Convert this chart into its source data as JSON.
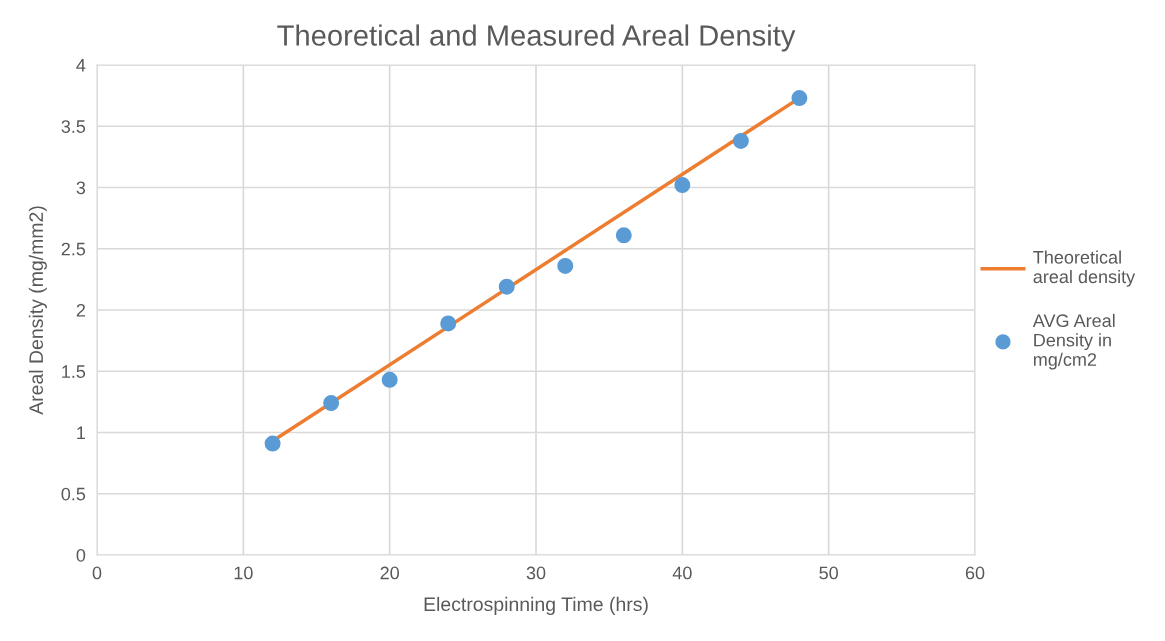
{
  "chart_data": {
    "type": "scatter",
    "title": "Theoretical and Measured Areal Density",
    "xlabel": "Electrospinning Time (hrs)",
    "ylabel": "Areal Density (mg/mm2)",
    "series": [
      {
        "name": "Theoretical areal density",
        "type": "line",
        "color": "#ed7d31",
        "marker": "none",
        "line_style": "solid",
        "x": [
          12,
          48
        ],
        "values": [
          0.93,
          3.73
        ]
      },
      {
        "name": "AVG Areal Density in mg/cm2",
        "color": "#5b9bd5",
        "marker": "circle",
        "x": [
          12,
          16,
          20,
          24,
          28,
          32,
          36,
          40,
          44,
          48
        ],
        "values": [
          0.91,
          1.24,
          1.43,
          1.89,
          2.19,
          2.36,
          2.61,
          3.02,
          3.38,
          3.73
        ]
      }
    ],
    "xlim": [
      0,
      60
    ],
    "xticks": [
      0,
      10,
      20,
      30,
      40,
      50,
      60
    ],
    "ylim": [
      0,
      4
    ],
    "yticks": [
      0,
      0.5,
      1,
      1.5,
      2,
      2.5,
      3,
      3.5,
      4
    ],
    "grid": true,
    "legend": "right"
  }
}
